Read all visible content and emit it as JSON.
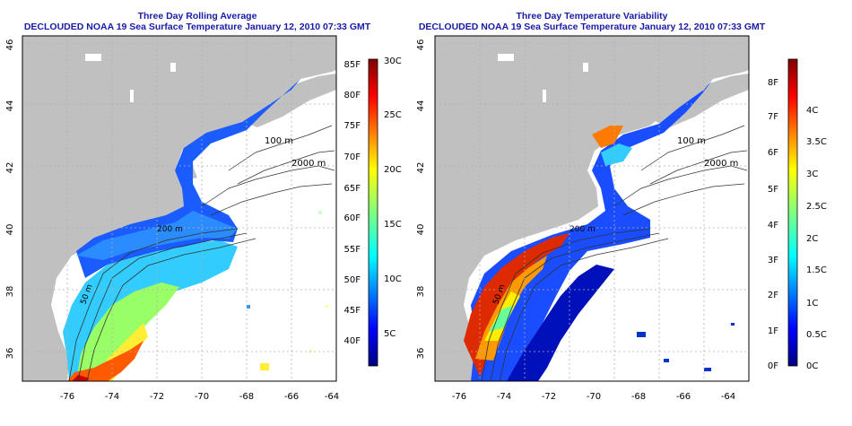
{
  "left_panel": {
    "title": "Three Day Rolling Average",
    "subtitle": "DECLOUDED NOAA 19 Sea Surface Temperature January 12, 2010 07:33 GMT",
    "colorbar": {
      "f_labels": [
        "85F",
        "80F",
        "75F",
        "70F",
        "65F",
        "60F",
        "55F",
        "50F",
        "45F",
        "40F"
      ],
      "c_labels": [
        "30C",
        "25C",
        "20C",
        "15C",
        "10C",
        "5C"
      ],
      "range_c": [
        2,
        30
      ]
    }
  },
  "right_panel": {
    "title": "Three Day Temperature Variability",
    "subtitle": "DECLOUDED NOAA 19 Sea Surface Temperature January 12, 2010 07:33 GMT",
    "colorbar": {
      "f_labels": [
        "8F",
        "7F",
        "6F",
        "5F",
        "4F",
        "3F",
        "2F",
        "1F",
        "0F"
      ],
      "c_labels": [
        "4C",
        "3.5C",
        "3C",
        "2.5C",
        "2C",
        "1.5C",
        "1C",
        "0.5C",
        "0C"
      ],
      "range_c": [
        0,
        5
      ]
    }
  },
  "axes": {
    "x_ticks": [
      "-76",
      "-74",
      "-72",
      "-70",
      "-68",
      "-66",
      "-64"
    ],
    "y_ticks": [
      "46",
      "44",
      "42",
      "40",
      "38",
      "36"
    ]
  },
  "contour_labels": [
    "100 m",
    "2000 m",
    "200 m",
    "50 m"
  ],
  "colors": {
    "land": "#c0c0c0",
    "title": "#1a1aa6",
    "grid": "#b0b0b0"
  }
}
